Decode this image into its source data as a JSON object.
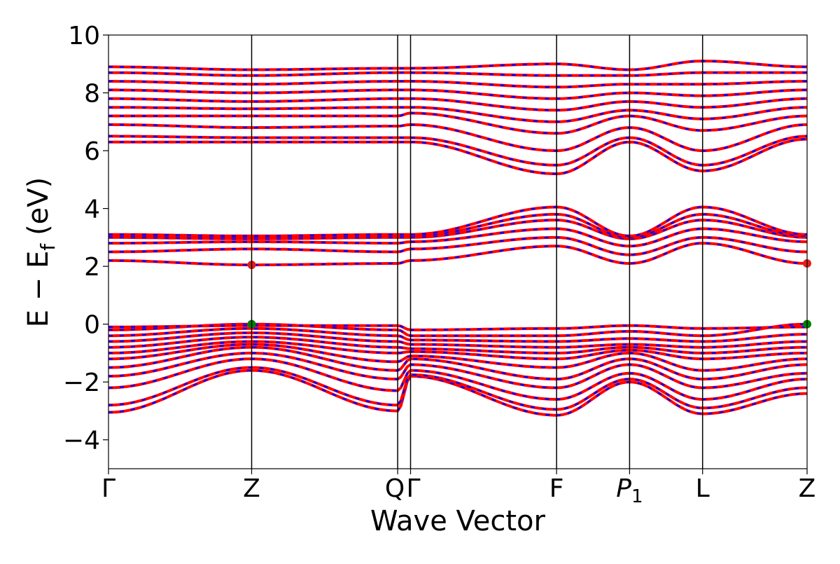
{
  "chart_data": {
    "type": "line",
    "title": "",
    "xlabel": "Wave Vector",
    "ylabel": "E − E",
    "ylabel_sub": "f",
    "ylabel_unit": "(eV)",
    "ylim": [
      -5,
      10
    ],
    "yticks": [
      -4,
      -2,
      0,
      2,
      4,
      6,
      8,
      10
    ],
    "ytick_labels": [
      "−4",
      "−2",
      "0",
      "2",
      "4",
      "6",
      "8",
      "10"
    ],
    "xlim": [
      0,
      4.88
    ],
    "high_symmetry_points": [
      {
        "label": "Γ",
        "sub": "",
        "italic": false,
        "x": 0.0
      },
      {
        "label": "Z",
        "sub": "",
        "italic": false,
        "x": 1.0
      },
      {
        "label": "Q",
        "sub": "",
        "italic": false,
        "x": 2.02
      },
      {
        "label": "Γ",
        "sub": "",
        "italic": false,
        "x": 2.11
      },
      {
        "label": "F",
        "sub": "",
        "italic": false,
        "x": 3.13
      },
      {
        "label": "P",
        "sub": "1",
        "italic": true,
        "x": 3.64
      },
      {
        "label": "L",
        "sub": "",
        "italic": false,
        "x": 4.15
      },
      {
        "label": "Z",
        "sub": "",
        "italic": false,
        "x": 4.88
      }
    ],
    "band_style": {
      "solid_color": "#ff0000",
      "dashed_color": "#0000ff",
      "grid": false,
      "legend": "none"
    },
    "markers": [
      {
        "name": "valence band maximum",
        "x": 1.0,
        "y": 0.0,
        "color": "#008000"
      },
      {
        "name": "valence band maximum",
        "x": 4.88,
        "y": 0.0,
        "color": "#008000"
      },
      {
        "name": "conduction band minimum",
        "x": 1.0,
        "y": 2.05,
        "color": "#e0201c"
      },
      {
        "name": "conduction band minimum",
        "x": 4.88,
        "y": 2.1,
        "color": "#e0201c"
      }
    ],
    "series": [
      {
        "values": [
          -3.05,
          -1.6,
          -3.0,
          -1.8,
          -3.15,
          -2.0,
          -3.1,
          -2.4
        ]
      },
      {
        "values": [
          -2.8,
          -1.5,
          -2.8,
          -1.75,
          -2.95,
          -1.9,
          -2.9,
          -2.2
        ]
      },
      {
        "values": [
          -2.2,
          -1.2,
          -2.3,
          -1.6,
          -2.6,
          -1.7,
          -2.6,
          -1.9
        ]
      },
      {
        "values": [
          -1.8,
          -1.0,
          -1.9,
          -1.4,
          -2.2,
          -1.4,
          -2.2,
          -1.7
        ]
      },
      {
        "values": [
          -1.5,
          -0.8,
          -1.6,
          -1.2,
          -1.9,
          -1.2,
          -1.9,
          -1.4
        ]
      },
      {
        "values": [
          -1.2,
          -0.7,
          -1.3,
          -1.1,
          -1.5,
          -1.0,
          -1.6,
          -1.2
        ]
      },
      {
        "values": [
          -1.0,
          -0.6,
          -1.0,
          -0.95,
          -1.2,
          -0.9,
          -1.2,
          -1.0
        ]
      },
      {
        "values": [
          -0.8,
          -0.45,
          -0.8,
          -0.85,
          -1.0,
          -0.8,
          -1.0,
          -0.8
        ]
      },
      {
        "values": [
          -0.6,
          -0.3,
          -0.6,
          -0.7,
          -0.8,
          -0.7,
          -0.8,
          -0.6
        ]
      },
      {
        "values": [
          -0.4,
          -0.15,
          -0.4,
          -0.55,
          -0.6,
          -0.5,
          -0.6,
          -0.35
        ]
      },
      {
        "values": [
          -0.2,
          0.0,
          -0.2,
          -0.4,
          -0.4,
          -0.25,
          -0.4,
          0.0
        ]
      },
      {
        "values": [
          -0.1,
          -0.05,
          -0.05,
          -0.2,
          -0.15,
          -0.05,
          -0.15,
          -0.1
        ]
      },
      {
        "values": [
          2.2,
          2.05,
          2.1,
          2.2,
          2.7,
          2.1,
          2.8,
          2.1
        ]
      },
      {
        "values": [
          2.5,
          2.6,
          2.5,
          2.6,
          3.0,
          2.4,
          3.0,
          2.5
        ]
      },
      {
        "values": [
          2.8,
          2.85,
          2.8,
          2.85,
          3.3,
          2.7,
          3.3,
          2.85
        ]
      },
      {
        "values": [
          3.0,
          2.95,
          3.0,
          3.0,
          3.6,
          2.95,
          3.6,
          3.0
        ]
      },
      {
        "values": [
          3.05,
          3.0,
          3.05,
          3.05,
          3.8,
          3.0,
          3.8,
          3.05
        ]
      },
      {
        "values": [
          3.1,
          3.05,
          3.1,
          3.1,
          4.05,
          3.05,
          4.05,
          3.1
        ]
      },
      {
        "values": [
          6.3,
          6.3,
          6.3,
          6.3,
          5.2,
          6.3,
          5.3,
          6.4
        ]
      },
      {
        "values": [
          6.5,
          6.45,
          6.45,
          6.45,
          5.5,
          6.45,
          5.5,
          6.5
        ]
      },
      {
        "values": [
          6.9,
          6.8,
          6.85,
          6.9,
          6.0,
          6.8,
          6.0,
          6.9
        ]
      },
      {
        "values": [
          7.2,
          7.2,
          7.2,
          7.3,
          6.6,
          7.2,
          6.7,
          7.2
        ]
      },
      {
        "values": [
          7.5,
          7.45,
          7.5,
          7.5,
          7.0,
          7.4,
          7.1,
          7.5
        ]
      },
      {
        "values": [
          7.8,
          7.7,
          7.8,
          7.8,
          7.4,
          7.7,
          7.5,
          7.8
        ]
      },
      {
        "values": [
          8.1,
          8.0,
          8.1,
          8.1,
          7.8,
          8.0,
          7.9,
          8.1
        ]
      },
      {
        "values": [
          8.4,
          8.3,
          8.4,
          8.4,
          8.2,
          8.3,
          8.3,
          8.4
        ]
      },
      {
        "values": [
          8.7,
          8.6,
          8.7,
          8.7,
          8.6,
          8.6,
          8.7,
          8.7
        ]
      },
      {
        "values": [
          8.9,
          8.8,
          8.85,
          8.85,
          9.0,
          8.8,
          9.1,
          8.9
        ]
      }
    ]
  }
}
